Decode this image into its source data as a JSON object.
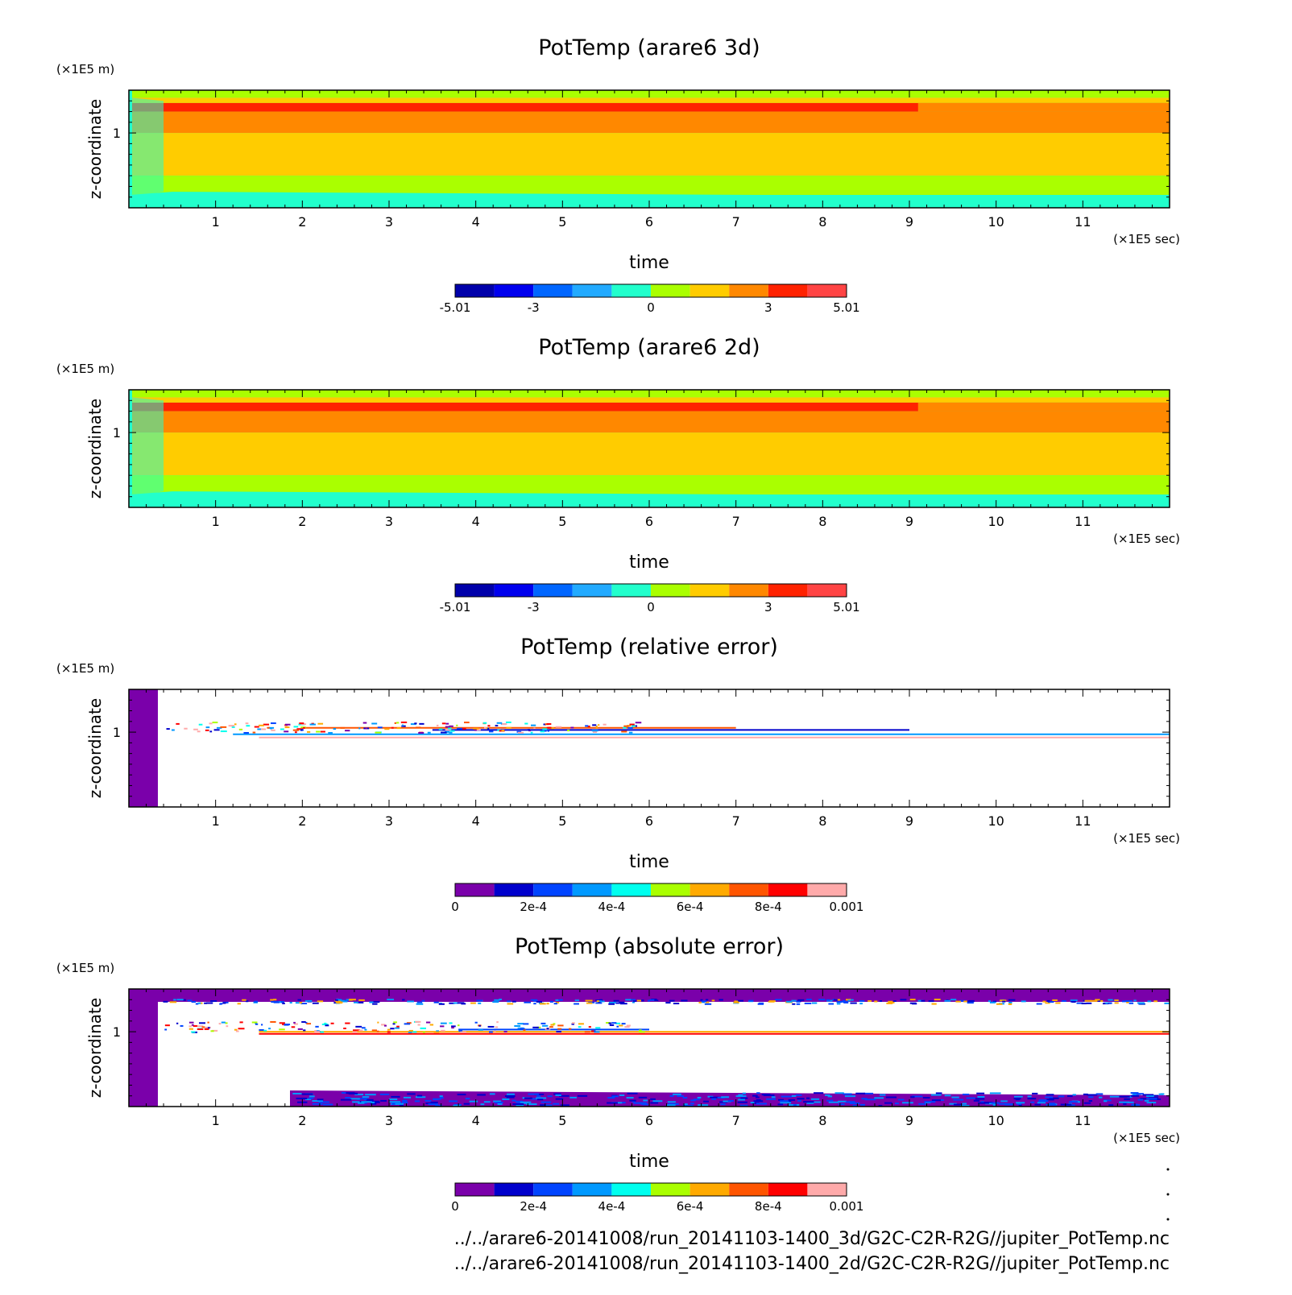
{
  "chart_data": [
    {
      "type": "heatmap",
      "title": "PotTemp (arare6 3d)",
      "xlabel": "time",
      "ylabel": "z-coordinate",
      "x_unit": "(×1E5 sec)",
      "y_unit": "(×1E5 m)",
      "x_ticks": [
        "1",
        "2",
        "3",
        "4",
        "5",
        "6",
        "7",
        "8",
        "9",
        "10",
        "11"
      ],
      "y_ticks": [
        "1"
      ],
      "xlim": [
        0,
        12
      ],
      "colorbar": {
        "labels": [
          "-5.01",
          "-3",
          "0",
          "3",
          "5.01"
        ],
        "colors": [
          "#0000aa",
          "#0000ee",
          "#0066ff",
          "#22aaff",
          "#22ffcc",
          "#aaff00",
          "#ffcc00",
          "#ff8800",
          "#ff2200",
          "#ff4444"
        ]
      },
      "bands": [
        {
          "y": [
            1.33,
            1.4
          ],
          "value": 0.5
        },
        {
          "y": [
            1.28,
            1.33
          ],
          "value": 1.2
        },
        {
          "y": [
            1.2,
            1.28
          ],
          "value": 3.6
        },
        {
          "y": [
            1.0,
            1.2
          ],
          "value": 2.3
        },
        {
          "y": [
            0.6,
            1.0
          ],
          "value": 1.2
        },
        {
          "y": [
            0.42,
            0.6
          ],
          "value": 0.5
        },
        {
          "y": [
            0.3,
            0.42
          ],
          "value": -0.3
        }
      ]
    },
    {
      "type": "heatmap",
      "title": "PotTemp (arare6 2d)",
      "xlabel": "time",
      "ylabel": "z-coordinate",
      "x_unit": "(×1E5 sec)",
      "y_unit": "(×1E5 m)",
      "x_ticks": [
        "1",
        "2",
        "3",
        "4",
        "5",
        "6",
        "7",
        "8",
        "9",
        "10",
        "11"
      ],
      "y_ticks": [
        "1"
      ],
      "xlim": [
        0,
        12
      ],
      "colorbar": {
        "labels": [
          "-5.01",
          "-3",
          "0",
          "3",
          "5.01"
        ],
        "colors": [
          "#0000aa",
          "#0000ee",
          "#0066ff",
          "#22aaff",
          "#22ffcc",
          "#aaff00",
          "#ffcc00",
          "#ff8800",
          "#ff2200",
          "#ff4444"
        ]
      },
      "bands": [
        {
          "y": [
            1.33,
            1.4
          ],
          "value": 0.5
        },
        {
          "y": [
            1.28,
            1.33
          ],
          "value": 1.2
        },
        {
          "y": [
            1.2,
            1.28
          ],
          "value": 3.6
        },
        {
          "y": [
            1.0,
            1.2
          ],
          "value": 2.3
        },
        {
          "y": [
            0.6,
            1.0
          ],
          "value": 1.2
        },
        {
          "y": [
            0.42,
            0.6
          ],
          "value": 0.5
        },
        {
          "y": [
            0.3,
            0.42
          ],
          "value": -0.3
        }
      ]
    },
    {
      "type": "heatmap",
      "title": "PotTemp (relative error)",
      "xlabel": "time",
      "ylabel": "z-coordinate",
      "x_unit": "(×1E5 sec)",
      "y_unit": "(×1E5 m)",
      "x_ticks": [
        "1",
        "2",
        "3",
        "4",
        "5",
        "6",
        "7",
        "8",
        "9",
        "10",
        "11"
      ],
      "y_ticks": [
        "1"
      ],
      "xlim": [
        0,
        12
      ],
      "colorbar": {
        "labels": [
          "0",
          "2e-4",
          "4e-4",
          "6e-4",
          "8e-4",
          "0.001"
        ],
        "colors": [
          "#7a00aa",
          "#0000cc",
          "#0044ff",
          "#0099ff",
          "#00ffee",
          "#aaff00",
          "#ffaa00",
          "#ff5500",
          "#ff0000",
          "#ffaaaa"
        ]
      }
    },
    {
      "type": "heatmap",
      "title": "PotTemp (absolute error)",
      "xlabel": "time",
      "ylabel": "z-coordinate",
      "x_unit": "(×1E5 sec)",
      "y_unit": "(×1E5 m)",
      "x_ticks": [
        "1",
        "2",
        "3",
        "4",
        "5",
        "6",
        "7",
        "8",
        "9",
        "10",
        "11"
      ],
      "y_ticks": [
        "1"
      ],
      "xlim": [
        0,
        12
      ],
      "colorbar": {
        "labels": [
          "0",
          "2e-4",
          "4e-4",
          "6e-4",
          "8e-4",
          "0.001"
        ],
        "colors": [
          "#7a00aa",
          "#0000cc",
          "#0044ff",
          "#0099ff",
          "#00ffee",
          "#aaff00",
          "#ffaa00",
          "#ff5500",
          "#ff0000",
          "#ffaaaa"
        ]
      }
    }
  ],
  "footer": {
    "path_3d": "../../arare6-20141008/run_20141103-1400_3d/G2C-C2R-R2G//jupiter_PotTemp.nc",
    "path_2d": "../../arare6-20141008/run_20141103-1400_2d/G2C-C2R-R2G//jupiter_PotTemp.nc"
  }
}
